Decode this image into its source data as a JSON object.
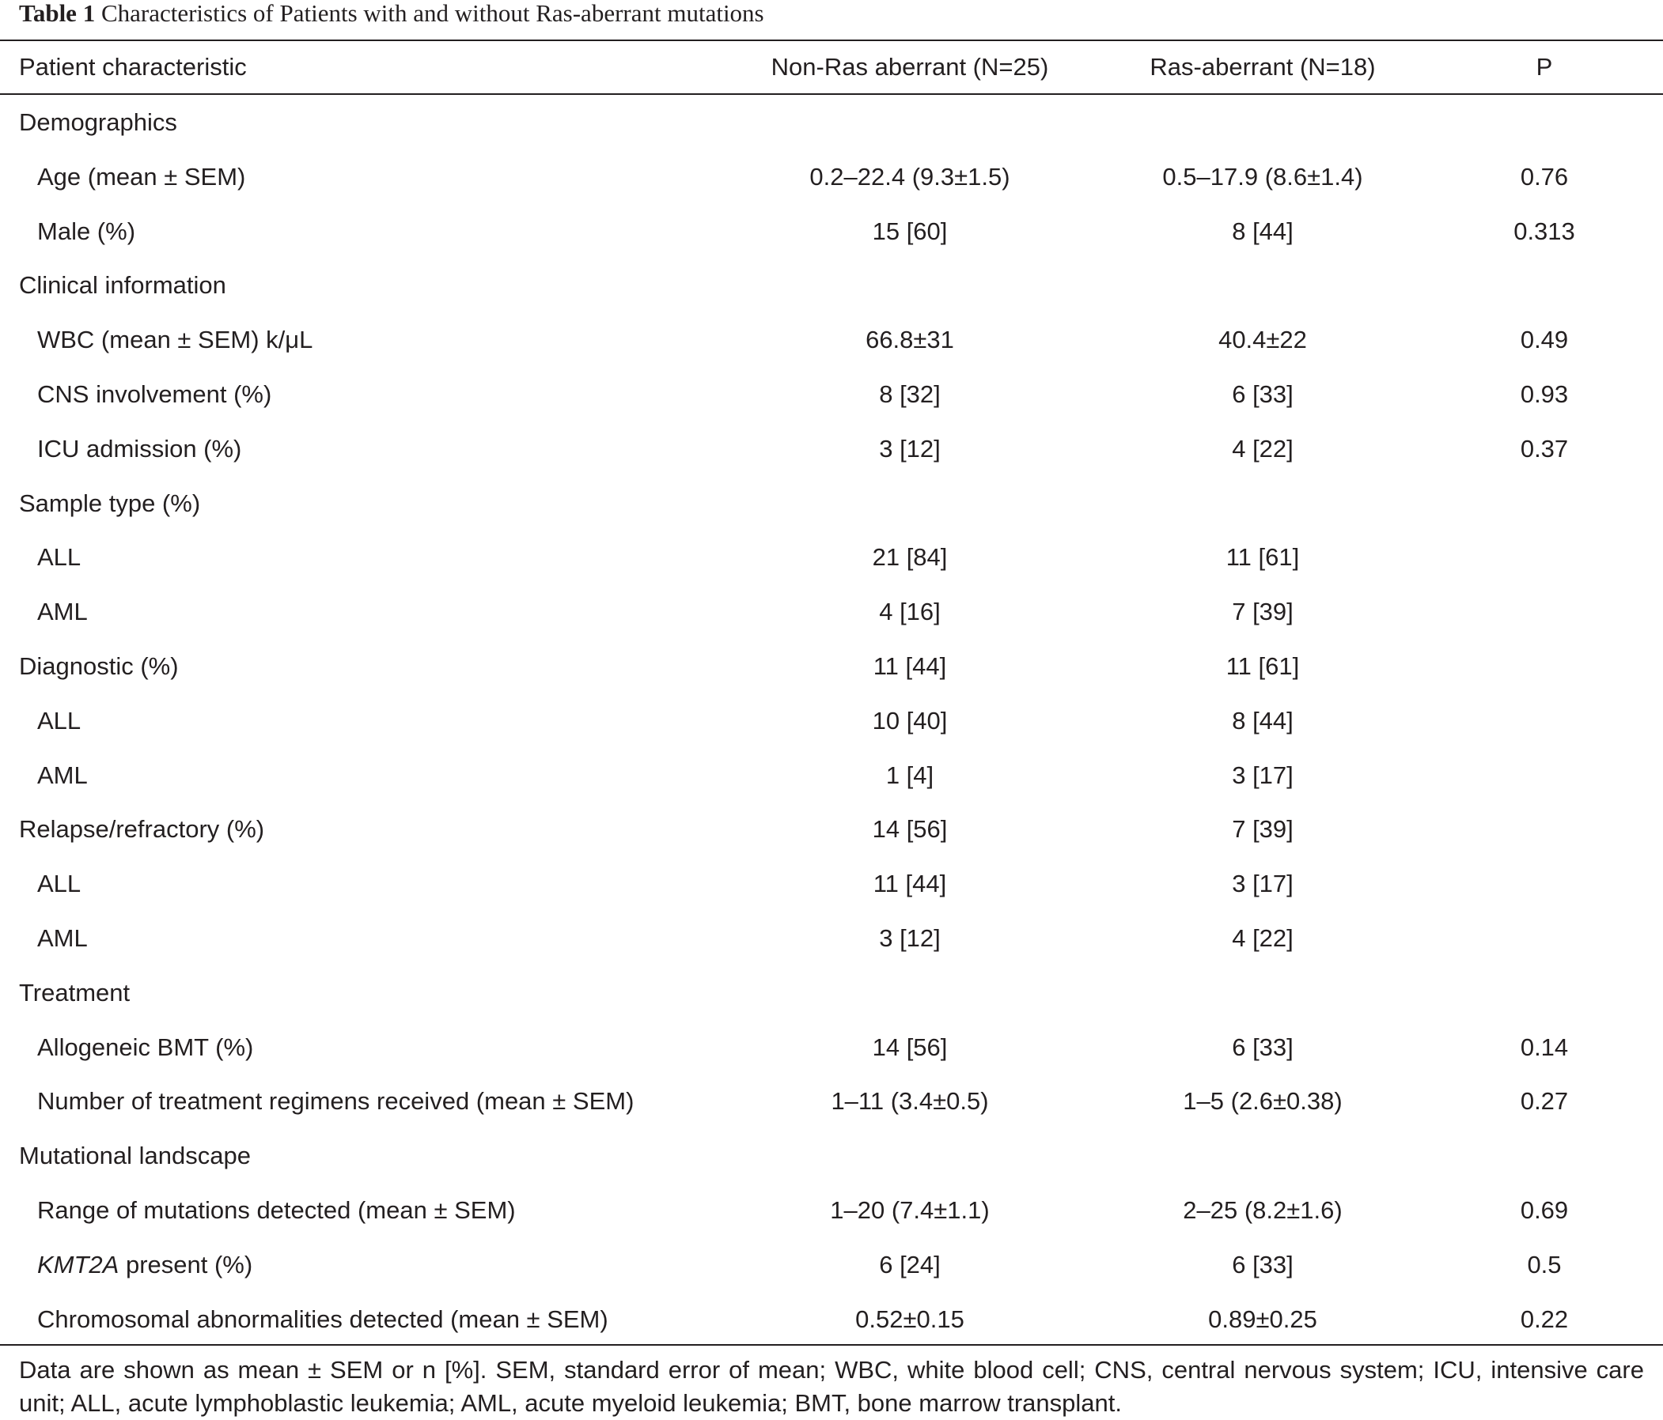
{
  "caption": {
    "label": "Table 1",
    "text": "Characteristics of Patients with and without Ras-aberrant mutations"
  },
  "headers": [
    "Patient characteristic",
    "Non-Ras aberrant (N=25)",
    "Ras-aberrant (N=18)",
    "P"
  ],
  "rows": [
    {
      "label": "Demographics",
      "sub": false,
      "non_ras": "",
      "ras": "",
      "p": ""
    },
    {
      "label": "Age (mean ± SEM)",
      "sub": true,
      "non_ras": "0.2–22.4 (9.3±1.5)",
      "ras": "0.5–17.9 (8.6±1.4)",
      "p": "0.76"
    },
    {
      "label": "Male (%)",
      "sub": true,
      "non_ras": "15 [60]",
      "ras": "8 [44]",
      "p": "0.313"
    },
    {
      "label": "Clinical information",
      "sub": false,
      "non_ras": "",
      "ras": "",
      "p": ""
    },
    {
      "label": "WBC (mean ± SEM) k/μL",
      "sub": true,
      "non_ras": "66.8±31",
      "ras": "40.4±22",
      "p": "0.49"
    },
    {
      "label": "CNS involvement (%)",
      "sub": true,
      "non_ras": "8 [32]",
      "ras": "6 [33]",
      "p": "0.93"
    },
    {
      "label": "ICU admission (%)",
      "sub": true,
      "non_ras": "3 [12]",
      "ras": "4 [22]",
      "p": "0.37"
    },
    {
      "label": "Sample type (%)",
      "sub": false,
      "non_ras": "",
      "ras": "",
      "p": ""
    },
    {
      "label": "ALL",
      "sub": true,
      "non_ras": "21 [84]",
      "ras": "11 [61]",
      "p": ""
    },
    {
      "label": "AML",
      "sub": true,
      "non_ras": "4 [16]",
      "ras": "7 [39]",
      "p": ""
    },
    {
      "label": "Diagnostic (%)",
      "sub": false,
      "non_ras": "11 [44]",
      "ras": "11 [61]",
      "p": ""
    },
    {
      "label": "ALL",
      "sub": true,
      "non_ras": "10 [40]",
      "ras": "8 [44]",
      "p": ""
    },
    {
      "label": "AML",
      "sub": true,
      "non_ras": "1 [4]",
      "ras": "3 [17]",
      "p": ""
    },
    {
      "label": "Relapse/refractory (%)",
      "sub": false,
      "non_ras": "14 [56]",
      "ras": "7 [39]",
      "p": ""
    },
    {
      "label": "ALL",
      "sub": true,
      "non_ras": "11 [44]",
      "ras": "3 [17]",
      "p": ""
    },
    {
      "label": "AML",
      "sub": true,
      "non_ras": "3 [12]",
      "ras": "4 [22]",
      "p": ""
    },
    {
      "label": "Treatment",
      "sub": false,
      "non_ras": "",
      "ras": "",
      "p": ""
    },
    {
      "label": "Allogeneic BMT (%)",
      "sub": true,
      "non_ras": "14 [56]",
      "ras": "6 [33]",
      "p": "0.14"
    },
    {
      "label": "Number of treatment regimens received (mean ± SEM)",
      "sub": true,
      "non_ras": "1–11 (3.4±0.5)",
      "ras": "1–5 (2.6±0.38)",
      "p": "0.27"
    },
    {
      "label": "Mutational landscape",
      "sub": false,
      "non_ras": "",
      "ras": "",
      "p": ""
    },
    {
      "label": "Range of mutations detected (mean ± SEM)",
      "sub": true,
      "non_ras": "1–20 (7.4±1.1)",
      "ras": "2–25 (8.2±1.6)",
      "p": "0.69"
    },
    {
      "label_italic": "KMT2A",
      "label": " present (%)",
      "sub": true,
      "non_ras": "6 [24]",
      "ras": "6 [33]",
      "p": "0.5"
    },
    {
      "label": "Chromosomal abnormalities detected (mean ± SEM)",
      "sub": true,
      "non_ras": "0.52±0.15",
      "ras": "0.89±0.25",
      "p": "0.22"
    }
  ],
  "footnote": "Data are shown as mean ± SEM or n [%]. SEM, standard error of mean; WBC, white blood cell; CNS, central nervous system; ICU, intensive care unit; ALL, acute lymphoblastic leukemia; AML, acute myeloid leukemia; BMT, bone marrow transplant."
}
